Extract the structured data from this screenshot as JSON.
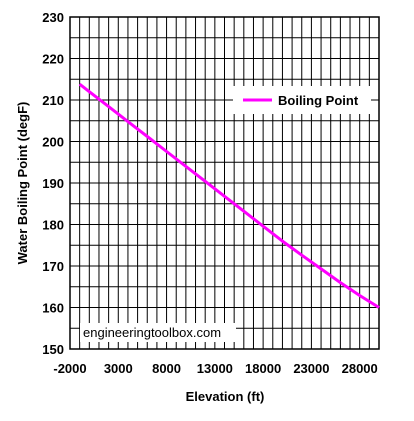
{
  "chart_data": {
    "type": "line",
    "title": "",
    "xlabel": "Elevation (ft)",
    "ylabel": "Water Boiling Point (degF)",
    "xlim": [
      -2000,
      30000
    ],
    "ylim": [
      150,
      230
    ],
    "x_ticks": [
      "-2000",
      "3000",
      "8000",
      "13000",
      "18000",
      "23000",
      "28000"
    ],
    "x_tick_values": [
      -2000,
      3000,
      8000,
      13000,
      18000,
      23000,
      28000
    ],
    "y_ticks": [
      "150",
      "160",
      "170",
      "180",
      "190",
      "200",
      "210",
      "220",
      "230"
    ],
    "y_tick_values": [
      150,
      160,
      170,
      180,
      190,
      200,
      210,
      220,
      230
    ],
    "grid": true,
    "legend_position": "top-right",
    "series": [
      {
        "name": "Boiling Point",
        "color": "#ff00ff",
        "x": [
          -1000,
          0,
          2000,
          4000,
          6000,
          8000,
          10000,
          12000,
          14000,
          16000,
          18000,
          20000,
          22000,
          24000,
          26000,
          28000,
          30000
        ],
        "y": [
          213.8,
          212,
          208.4,
          204.8,
          201.2,
          197.6,
          194,
          190.4,
          186.8,
          183.2,
          179.6,
          176,
          172.6,
          169.3,
          166,
          162.9,
          160
        ]
      }
    ],
    "annotation": "engineeringtoolbox.com"
  }
}
